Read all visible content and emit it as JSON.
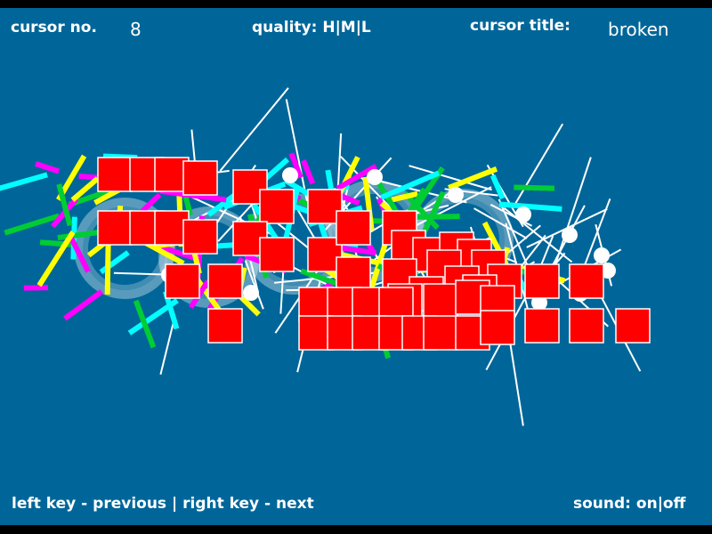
{
  "header": {
    "cursor_no_label": "cursor no.",
    "cursor_no_value": "8",
    "quality_label": "quality:",
    "quality_options": [
      "H",
      "M",
      "L"
    ],
    "cursor_title_label": "cursor title:",
    "cursor_title_value": "broken"
  },
  "footer": {
    "left_key_hint": "left key - previous",
    "separator": "|",
    "right_key_hint": "right key - next",
    "sound_label": "sound:",
    "sound_options": [
      "on",
      "off"
    ]
  },
  "colors": {
    "background": "#006699",
    "square": "#ff0000",
    "lines": [
      "#ffffff",
      "#ffff00",
      "#00cc33",
      "#00ffff",
      "#ff00ff"
    ]
  }
}
